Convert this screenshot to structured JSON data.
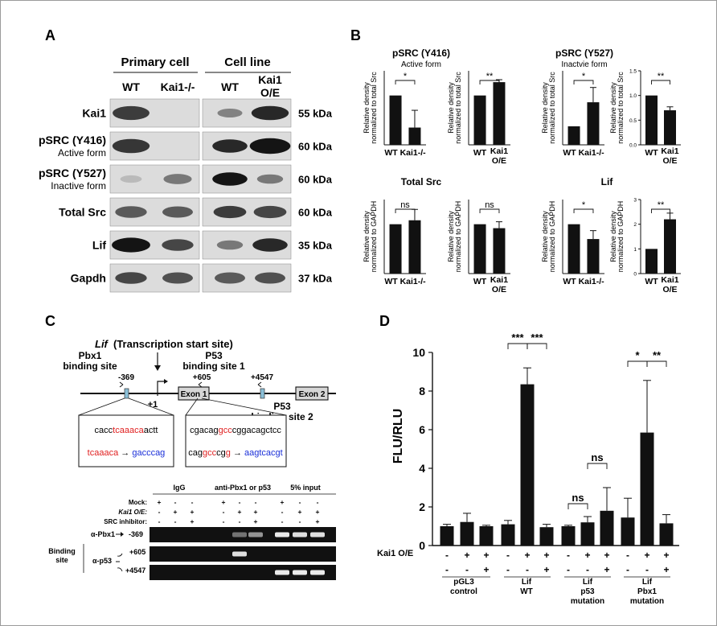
{
  "panels": {
    "A": "A",
    "B": "B",
    "C": "C",
    "D": "D"
  },
  "panel_a": {
    "groups": [
      "Primary cell",
      "Cell line"
    ],
    "columns": [
      "WT",
      "Kai1-/-",
      "WT",
      "Kai1",
      "O/E"
    ],
    "rows": [
      {
        "label": "Kai1",
        "sub": "",
        "kda": "55 kDa"
      },
      {
        "label": "pSRC (Y416)",
        "sub": "Active form",
        "kda": "60 kDa"
      },
      {
        "label": "pSRC (Y527)",
        "sub": "Inactive form",
        "kda": "60 kDa"
      },
      {
        "label": "Total Src",
        "sub": "",
        "kda": "60 kDa"
      },
      {
        "label": "Lif",
        "sub": "",
        "kda": "35 kDa"
      },
      {
        "label": "Gapdh",
        "sub": "",
        "kda": "37 kDa"
      }
    ]
  },
  "panel_b": {
    "titles": {
      "pY416": "pSRC (Y416)",
      "pY416_sub": "Active form",
      "pY527": "pSRC (Y527)",
      "pY527_sub": "Inactvie form",
      "total": "Total Src",
      "lif": "Lif"
    },
    "ylabel_src": [
      "Relative density",
      "normalized to total Src"
    ],
    "ylabel_gapdh": [
      "Relative density",
      "normalized to GAPDH"
    ],
    "xlabels": {
      "wt": "WT",
      "ko": "Kai1-/-",
      "oe1": "Kai1",
      "oe2": "O/E"
    },
    "sig": {
      "s1": "*",
      "s2": "**",
      "ns": "ns"
    }
  },
  "chart_data": [
    {
      "type": "bar",
      "categories": [
        "WT",
        "Kai1-/-"
      ],
      "values": [
        1.0,
        0.35
      ],
      "errors": [
        0,
        0.35
      ],
      "ylim": [
        0,
        1.5
      ],
      "significance": "*",
      "title": "pSRC (Y416)",
      "subtitle": "Active form",
      "ylabel": "Relative density normalized to total Src"
    },
    {
      "type": "bar",
      "categories": [
        "WT",
        "Kai1 O/E"
      ],
      "values": [
        1.0,
        1.27
      ],
      "errors": [
        0,
        0.05
      ],
      "ylim": [
        0,
        1.5
      ],
      "significance": "**",
      "ylabel": "Relative density normalized to total Src"
    },
    {
      "type": "bar",
      "categories": [
        "WT",
        "Kai1-/-"
      ],
      "values": [
        1.0,
        2.3
      ],
      "errors": [
        0,
        0.8
      ],
      "ylim": [
        0,
        4
      ],
      "significance": "*",
      "title": "pSRC (Y527)",
      "subtitle": "Inactvie form",
      "ylabel": "Relative density normalized to total Src"
    },
    {
      "type": "bar",
      "categories": [
        "WT",
        "Kai1 O/E"
      ],
      "values": [
        1.0,
        0.7
      ],
      "errors": [
        0,
        0.07
      ],
      "ylim": [
        0,
        1.5
      ],
      "significance": "**",
      "ylabel": "Relative density normalized to total Src"
    },
    {
      "type": "bar",
      "categories": [
        "WT",
        "Kai1-/-"
      ],
      "values": [
        1.0,
        1.08
      ],
      "errors": [
        0,
        0.22
      ],
      "ylim": [
        0,
        1.5
      ],
      "significance": "ns",
      "title": "Total Src",
      "ylabel": "Relative density normalized to GAPDH"
    },
    {
      "type": "bar",
      "categories": [
        "WT",
        "Kai1 O/E"
      ],
      "values": [
        1.0,
        0.92
      ],
      "errors": [
        0,
        0.13
      ],
      "ylim": [
        0,
        1.5
      ],
      "significance": "ns",
      "ylabel": "Relative density normalized to GAPDH"
    },
    {
      "type": "bar",
      "categories": [
        "WT",
        "Kai1-/-"
      ],
      "values": [
        1.0,
        0.7
      ],
      "errors": [
        0,
        0.17
      ],
      "ylim": [
        0,
        1.5
      ],
      "significance": "*",
      "title": "Lif",
      "ylabel": "Relative density normalized to GAPDH"
    },
    {
      "type": "bar",
      "categories": [
        "WT",
        "Kai1 O/E"
      ],
      "values": [
        1.0,
        2.2
      ],
      "errors": [
        0,
        0.25
      ],
      "ylim": [
        0,
        3
      ],
      "significance": "**",
      "ylabel": "Relative density normalized to GAPDH"
    },
    {
      "type": "bar",
      "title": "",
      "ylabel": "FLU/RLU",
      "ylim": [
        0,
        10
      ],
      "yticks": [
        0,
        2,
        4,
        6,
        8,
        10
      ],
      "groups": [
        "pGL3 control",
        "Lif WT",
        "Lif p53 mutation",
        "Lif Pbx1 mutation"
      ],
      "kai1_oe": [
        "-",
        "+",
        "+",
        "-",
        "+",
        "+",
        "-",
        "+",
        "+",
        "-",
        "+",
        "+"
      ],
      "src_inhibitor": [
        "-",
        "-",
        "+",
        "-",
        "-",
        "+",
        "-",
        "-",
        "+",
        "-",
        "-",
        "+"
      ],
      "values": [
        1.0,
        1.22,
        1.0,
        1.1,
        8.35,
        0.95,
        1.0,
        1.2,
        1.8,
        1.45,
        5.85,
        1.15
      ],
      "errors": [
        0.1,
        0.45,
        0.05,
        0.2,
        0.85,
        0.15,
        0.05,
        0.3,
        1.2,
        1.0,
        2.7,
        0.45
      ],
      "significance": [
        "***",
        "***",
        "ns",
        "ns",
        "*",
        "**"
      ]
    }
  ],
  "panel_c": {
    "tss": "(Transcription start site)",
    "lif": "Lif",
    "pbx1_site": [
      "Pbx1",
      "binding site"
    ],
    "p53_site1": [
      "P53",
      "binding site 1"
    ],
    "p53_site2": [
      "P53",
      "binding site 2"
    ],
    "pos": {
      "m369": "-369",
      "p605": "+605",
      "p4547": "+4547",
      "p1": "+1"
    },
    "exon1": "Exon 1",
    "exon2": "Exon 2",
    "seq1": [
      "cacc",
      "tcaaaca",
      "actt"
    ],
    "mut1": [
      "tcaaaca",
      "→",
      "gacccag"
    ],
    "seq2": [
      "cgacag",
      "gcc",
      "cgg",
      "acagctcc"
    ],
    "mut2": [
      "cag",
      "gcc",
      "cg",
      "g",
      "→",
      "aagtcacgt"
    ],
    "gel_headers": [
      "IgG",
      "anti-Pbx1 or p53",
      "5% input"
    ],
    "cond": [
      "Mock:",
      "Kai1 O/E:",
      "SRC inhibitor:"
    ],
    "mock": [
      "+",
      "-",
      "-",
      "+",
      "-",
      "-",
      "+",
      "-",
      "-"
    ],
    "kai1": [
      "-",
      "+",
      "+",
      "-",
      "+",
      "+",
      "-",
      "+",
      "+"
    ],
    "src": [
      "-",
      "-",
      "+",
      "-",
      "-",
      "+",
      "-",
      "-",
      "+"
    ],
    "binding": [
      "Binding",
      "site"
    ],
    "apbx1": "α-Pbx1",
    "ap53": "α-p53",
    "lanes": [
      "-369",
      "+605",
      "+4547"
    ]
  },
  "panel_d": {
    "ylabel": "FLU/RLU",
    "kai1_label": "Kai1 O/E",
    "groups": [
      [
        "pGL3",
        "control"
      ],
      [
        "Lif",
        "WT"
      ],
      [
        "Lif",
        "p53",
        "mutation"
      ],
      [
        "Lif",
        "Pbx1",
        "mutation"
      ]
    ]
  }
}
